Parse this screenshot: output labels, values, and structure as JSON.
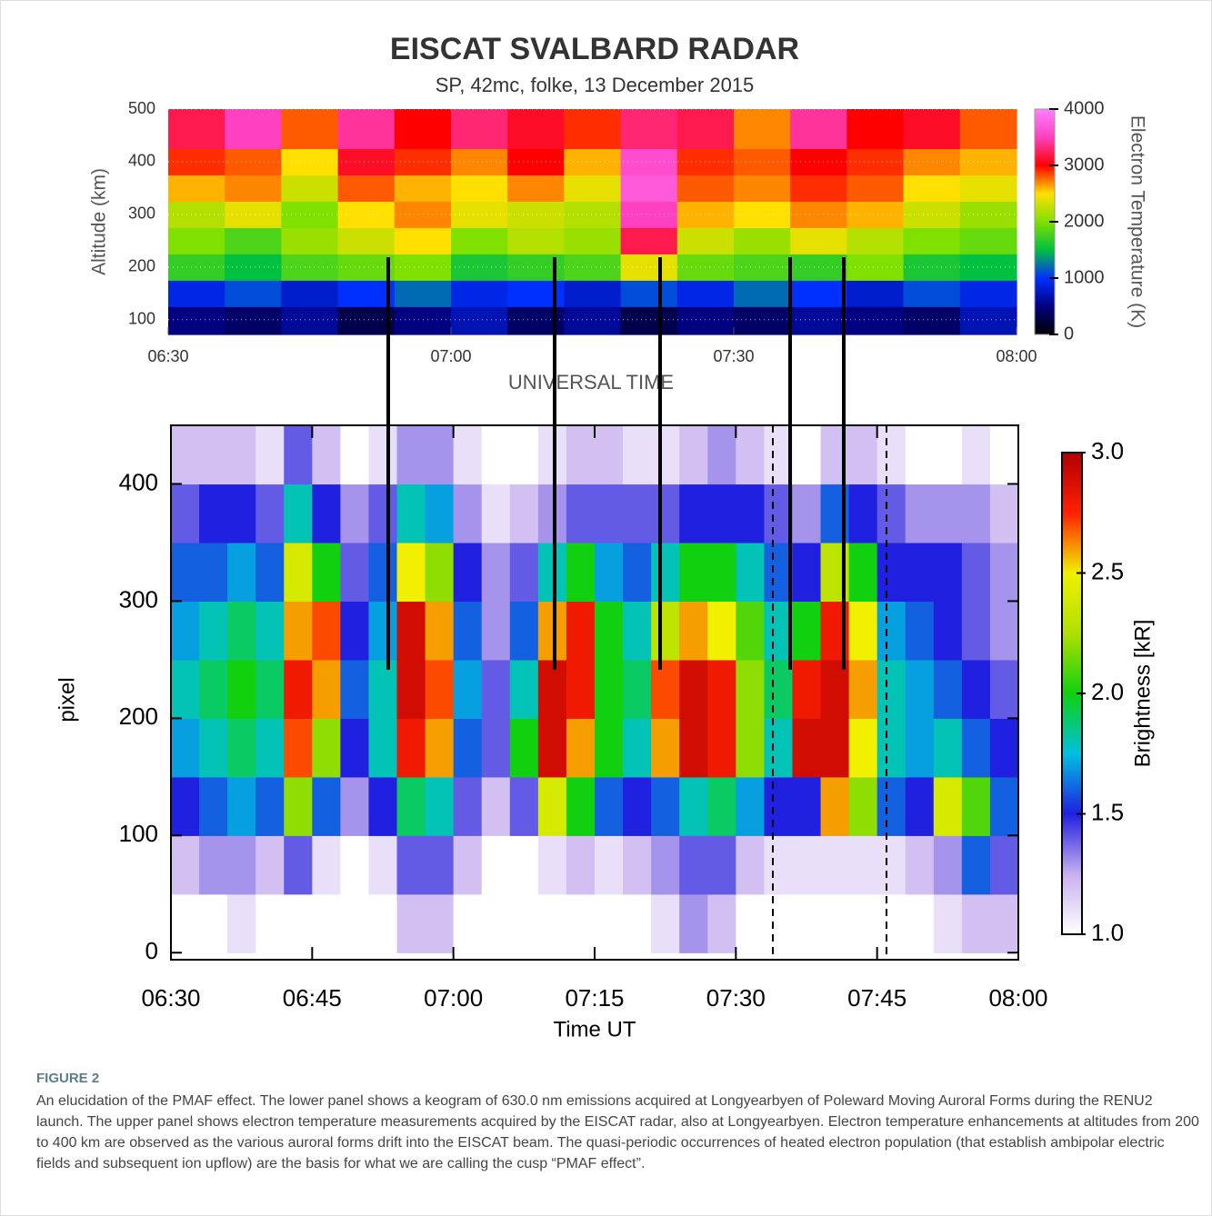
{
  "chart_data": [
    {
      "type": "heatmap",
      "title": "EISCAT SVALBARD RADAR",
      "subtitle": "SP, 42mc, folke, 13 December 2015",
      "x_label": "UNIVERSAL TIME",
      "y_label": "Altitude (km)",
      "colorbar_label": "Electron Temperature (K)",
      "xlim": [
        "06:30",
        "08:00"
      ],
      "xticks": [
        "06:30",
        "07:00",
        "07:30",
        "08:00"
      ],
      "ylim": [
        72,
        500
      ],
      "yticks": [
        100,
        200,
        300,
        400,
        500
      ],
      "clim": [
        0,
        4000
      ],
      "cticks": [
        0,
        1000,
        2000,
        3000,
        4000
      ],
      "colormap": [
        "#000000",
        "#000080",
        "#0030ff",
        "#00c040",
        "#80e000",
        "#ffe000",
        "#ff0000",
        "#ff40c0",
        "#ff80ff"
      ],
      "time_bins": [
        "06:30",
        "06:36",
        "06:42",
        "06:48",
        "06:54",
        "07:00",
        "07:06",
        "07:12",
        "07:18",
        "07:24",
        "07:30",
        "07:36",
        "07:42",
        "07:48",
        "07:54",
        "08:00"
      ],
      "y_bins": [
        72,
        125,
        175,
        225,
        275,
        325,
        375,
        425,
        500
      ],
      "values": [
        [
          500,
          400,
          600,
          300,
          500,
          700,
          400,
          600,
          300,
          500,
          400,
          600,
          500,
          400,
          700
        ],
        [
          900,
          1100,
          800,
          1000,
          1200,
          900,
          1000,
          800,
          1100,
          900,
          1200,
          1000,
          800,
          1100,
          900
        ],
        [
          1700,
          1500,
          1800,
          1900,
          2000,
          1600,
          1700,
          1800,
          2400,
          1900,
          1800,
          1700,
          2000,
          1600,
          1500
        ],
        [
          2000,
          1800,
          2100,
          2300,
          2500,
          2000,
          2200,
          2100,
          3200,
          2300,
          2100,
          2400,
          2200,
          2000,
          1900
        ],
        [
          2200,
          2400,
          2000,
          2500,
          2700,
          2400,
          2300,
          2200,
          3500,
          2600,
          2500,
          2700,
          2600,
          2300,
          2100
        ],
        [
          2600,
          2700,
          2300,
          2800,
          2600,
          2500,
          2700,
          2400,
          3700,
          2800,
          2700,
          2900,
          2800,
          2500,
          2400
        ],
        [
          2900,
          2800,
          2500,
          3100,
          2900,
          2700,
          3000,
          2600,
          3600,
          2900,
          2800,
          3000,
          2900,
          2700,
          2600
        ],
        [
          3200,
          3500,
          2800,
          3400,
          3000,
          3300,
          3100,
          2900,
          3300,
          3200,
          2700,
          3400,
          3000,
          3100,
          2800
        ]
      ]
    },
    {
      "type": "heatmap",
      "x_label": "Time UT",
      "y_label": "pixel",
      "colorbar_label": "Brightness  [kR]",
      "xlim": [
        "06:30",
        "08:00"
      ],
      "xticks": [
        "06:30",
        "06:45",
        "07:00",
        "07:15",
        "07:30",
        "07:45",
        "08:00"
      ],
      "ylim": [
        -6,
        450
      ],
      "yticks": [
        0,
        100,
        200,
        300,
        400
      ],
      "clim": [
        1,
        3
      ],
      "cticks": [
        {
          "value": 1,
          "label": "1.0"
        },
        1.5,
        {
          "value": 2,
          "label": "2.0"
        },
        2.5,
        {
          "value": 3,
          "label": "3.0"
        }
      ],
      "colormap": [
        "#ffffff",
        "#c8b0ef",
        "#2020e0",
        "#00c0e0",
        "#10d010",
        "#b0e000",
        "#f0f000",
        "#ff2000",
        "#b00000"
      ],
      "time_bins": [
        "06:30",
        "06:33",
        "06:36",
        "06:39",
        "06:42",
        "06:45",
        "06:48",
        "06:51",
        "06:54",
        "06:57",
        "07:00",
        "07:03",
        "07:06",
        "07:09",
        "07:12",
        "07:15",
        "07:18",
        "07:21",
        "07:24",
        "07:27",
        "07:30",
        "07:33",
        "07:36",
        "07:39",
        "07:42",
        "07:45",
        "07:48",
        "07:51",
        "07:54",
        "07:57",
        "08:00"
      ],
      "y_bins": [
        0,
        50,
        100,
        150,
        200,
        250,
        300,
        350,
        400,
        450
      ],
      "values": [
        [
          1.0,
          1.0,
          1.1,
          1.0,
          1.0,
          1.0,
          1.0,
          1.0,
          1.2,
          1.2,
          1.0,
          1.0,
          1.0,
          1.0,
          1.0,
          1.0,
          1.0,
          1.1,
          1.3,
          1.2,
          1.0,
          1.0,
          1.0,
          1.0,
          1.0,
          1.0,
          1.0,
          1.1,
          1.2,
          1.2
        ],
        [
          1.2,
          1.3,
          1.3,
          1.2,
          1.4,
          1.1,
          1.0,
          1.1,
          1.4,
          1.4,
          1.2,
          1.0,
          1.0,
          1.1,
          1.2,
          1.1,
          1.2,
          1.3,
          1.4,
          1.4,
          1.2,
          1.1,
          1.1,
          1.1,
          1.1,
          1.1,
          1.2,
          1.3,
          1.6,
          1.4
        ],
        [
          1.5,
          1.6,
          1.7,
          1.6,
          2.2,
          1.6,
          1.3,
          1.5,
          1.9,
          1.8,
          1.4,
          1.2,
          1.4,
          2.4,
          2.0,
          1.6,
          1.5,
          1.6,
          1.8,
          1.9,
          1.7,
          1.5,
          1.5,
          2.6,
          2.2,
          1.6,
          1.5,
          2.4,
          2.1,
          1.6
        ],
        [
          1.7,
          1.8,
          1.9,
          1.8,
          2.7,
          2.2,
          1.5,
          1.8,
          2.8,
          2.6,
          1.6,
          1.4,
          2.0,
          2.9,
          2.6,
          2.0,
          1.8,
          2.6,
          2.9,
          2.8,
          2.2,
          1.8,
          2.9,
          2.9,
          2.5,
          1.8,
          1.7,
          1.8,
          1.6,
          1.5
        ],
        [
          1.8,
          1.9,
          2.0,
          1.9,
          2.8,
          2.6,
          1.6,
          1.8,
          2.9,
          2.7,
          1.7,
          1.4,
          1.8,
          2.9,
          2.8,
          2.0,
          1.9,
          2.7,
          2.9,
          2.8,
          2.2,
          1.9,
          2.8,
          2.9,
          2.6,
          1.8,
          1.7,
          1.6,
          1.5,
          1.4
        ],
        [
          1.7,
          1.8,
          1.9,
          1.8,
          2.6,
          2.7,
          1.5,
          1.7,
          2.9,
          2.6,
          1.6,
          1.3,
          1.6,
          2.6,
          2.8,
          2.0,
          1.8,
          2.3,
          2.6,
          2.5,
          2.1,
          1.8,
          2.0,
          2.8,
          2.5,
          1.7,
          1.6,
          1.5,
          1.4,
          1.3
        ],
        [
          1.6,
          1.6,
          1.7,
          1.6,
          2.4,
          2.0,
          1.4,
          1.6,
          2.5,
          2.2,
          1.5,
          1.3,
          1.4,
          1.8,
          2.0,
          1.7,
          1.6,
          1.8,
          2.0,
          2.0,
          1.8,
          1.6,
          1.5,
          2.3,
          2.0,
          1.5,
          1.5,
          1.5,
          1.4,
          1.3
        ],
        [
          1.4,
          1.5,
          1.5,
          1.4,
          1.8,
          1.5,
          1.3,
          1.4,
          1.8,
          1.7,
          1.3,
          1.1,
          1.2,
          1.3,
          1.4,
          1.4,
          1.4,
          1.4,
          1.5,
          1.5,
          1.5,
          1.4,
          1.3,
          1.6,
          1.5,
          1.4,
          1.3,
          1.3,
          1.3,
          1.2
        ],
        [
          1.2,
          1.2,
          1.2,
          1.1,
          1.4,
          1.2,
          1.0,
          1.1,
          1.3,
          1.3,
          1.1,
          1.0,
          1.0,
          1.1,
          1.2,
          1.2,
          1.1,
          1.1,
          1.2,
          1.3,
          1.2,
          1.1,
          1.0,
          1.2,
          1.2,
          1.1,
          1.0,
          1.0,
          1.1,
          1.0
        ]
      ]
    }
  ],
  "figure": {
    "label": "FIGURE 2",
    "caption": "An elucidation of the PMAF effect. The lower panel shows a keogram of 630.0 nm emissions acquired at Longyearbyen of Poleward Moving Auroral Forms during the RENU2 launch. The upper panel shows electron temperature measurements acquired by the EISCAT radar, also at Longyearbyen. Electron temperature enhancements at altitudes from 200 to 400 km are observed as the various auroral forms drift into the EISCAT beam. The quasi-periodic occurrences of heated electron population (that establish ambipolar electric fields and subsequent ion upflow) are the basis for what we are calling the cusp “PMAF effect”."
  }
}
